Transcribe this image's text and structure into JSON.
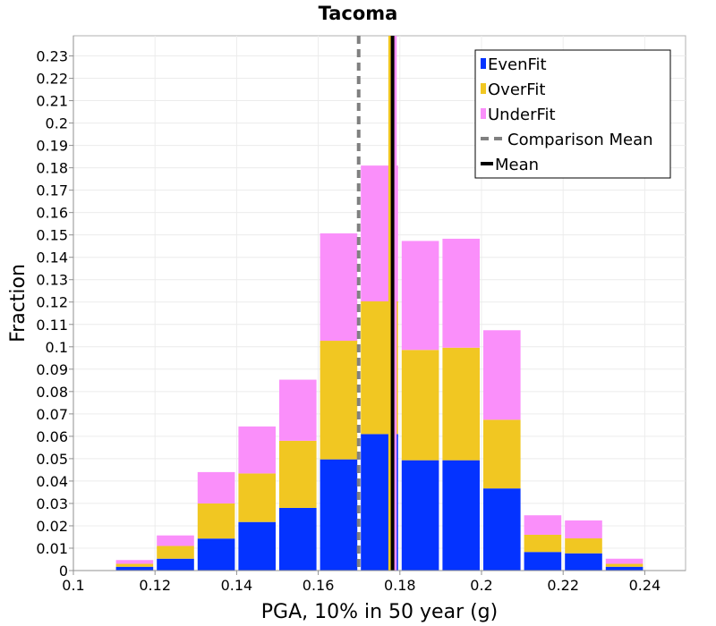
{
  "chart_data": {
    "type": "bar",
    "stacked": true,
    "title": "Tacoma",
    "xlabel": "PGA, 10% in 50 year (g)",
    "ylabel": "Fraction",
    "xlim": [
      0.1,
      0.25
    ],
    "ylim": [
      0,
      0.239
    ],
    "xticks": [
      "0.1",
      "0.12",
      "0.14",
      "0.16",
      "0.18",
      "0.2",
      "0.22",
      "0.24"
    ],
    "xtick_values": [
      0.1,
      0.12,
      0.14,
      0.16,
      0.18,
      0.2,
      0.22,
      0.24
    ],
    "yticks": [
      "0",
      "0.01",
      "0.02",
      "0.03",
      "0.04",
      "0.05",
      "0.06",
      "0.07",
      "0.08",
      "0.09",
      "0.1",
      "0.11",
      "0.12",
      "0.13",
      "0.14",
      "0.15",
      "0.16",
      "0.17",
      "0.18",
      "0.19",
      "0.2",
      "0.21",
      "0.22",
      "0.23"
    ],
    "ytick_values": [
      0,
      0.01,
      0.02,
      0.03,
      0.04,
      0.05,
      0.06,
      0.07,
      0.08,
      0.09,
      0.1,
      0.11,
      0.12,
      0.13,
      0.14,
      0.15,
      0.16,
      0.17,
      0.18,
      0.19,
      0.2,
      0.21,
      0.22,
      0.23
    ],
    "bin_width": 0.01,
    "bin_centers": [
      0.105,
      0.115,
      0.125,
      0.135,
      0.145,
      0.155,
      0.165,
      0.175,
      0.185,
      0.195,
      0.205,
      0.215,
      0.225,
      0.235,
      0.245
    ],
    "series": [
      {
        "name": "EvenFit",
        "color": "#0433ff",
        "values": [
          0.0,
          0.0017,
          0.0053,
          0.0143,
          0.0217,
          0.028,
          0.0497,
          0.061,
          0.0493,
          0.0493,
          0.0367,
          0.0083,
          0.0077,
          0.0017,
          0.0
        ]
      },
      {
        "name": "OverFit",
        "color": "#f1c722",
        "values": [
          0.0,
          0.0013,
          0.0057,
          0.0157,
          0.0217,
          0.03,
          0.053,
          0.0593,
          0.0493,
          0.0503,
          0.0307,
          0.0077,
          0.0067,
          0.0013,
          0.0
        ]
      },
      {
        "name": "UnderFit",
        "color": "#fa8ffa",
        "values": [
          0.0,
          0.0017,
          0.0047,
          0.014,
          0.021,
          0.0273,
          0.048,
          0.0607,
          0.0487,
          0.0487,
          0.04,
          0.0087,
          0.008,
          0.0023,
          0.0
        ]
      }
    ],
    "lines": [
      {
        "name": "Comparison Mean",
        "style": "dashed",
        "color": "#808080",
        "x": 0.1699
      },
      {
        "name": "Mean",
        "style": "solid",
        "color": "#000000",
        "x": 0.1782
      }
    ],
    "mean_component_lines": [
      {
        "series": "OverFit",
        "color": "#f1c722",
        "x": 0.1775
      },
      {
        "series": "UnderFit",
        "color": "#fa8ffa",
        "x": 0.1789
      }
    ],
    "legend": {
      "placement": "top-right",
      "entries": [
        {
          "label": "EvenFit",
          "kind": "box",
          "color": "#0433ff"
        },
        {
          "label": "OverFit",
          "kind": "box",
          "color": "#f1c722"
        },
        {
          "label": "UnderFit",
          "kind": "box",
          "color": "#fa8ffa"
        },
        {
          "label": "Comparison Mean",
          "kind": "dash",
          "color": "#808080"
        },
        {
          "label": "Mean",
          "kind": "line",
          "color": "#000000"
        }
      ]
    },
    "grid": true
  }
}
